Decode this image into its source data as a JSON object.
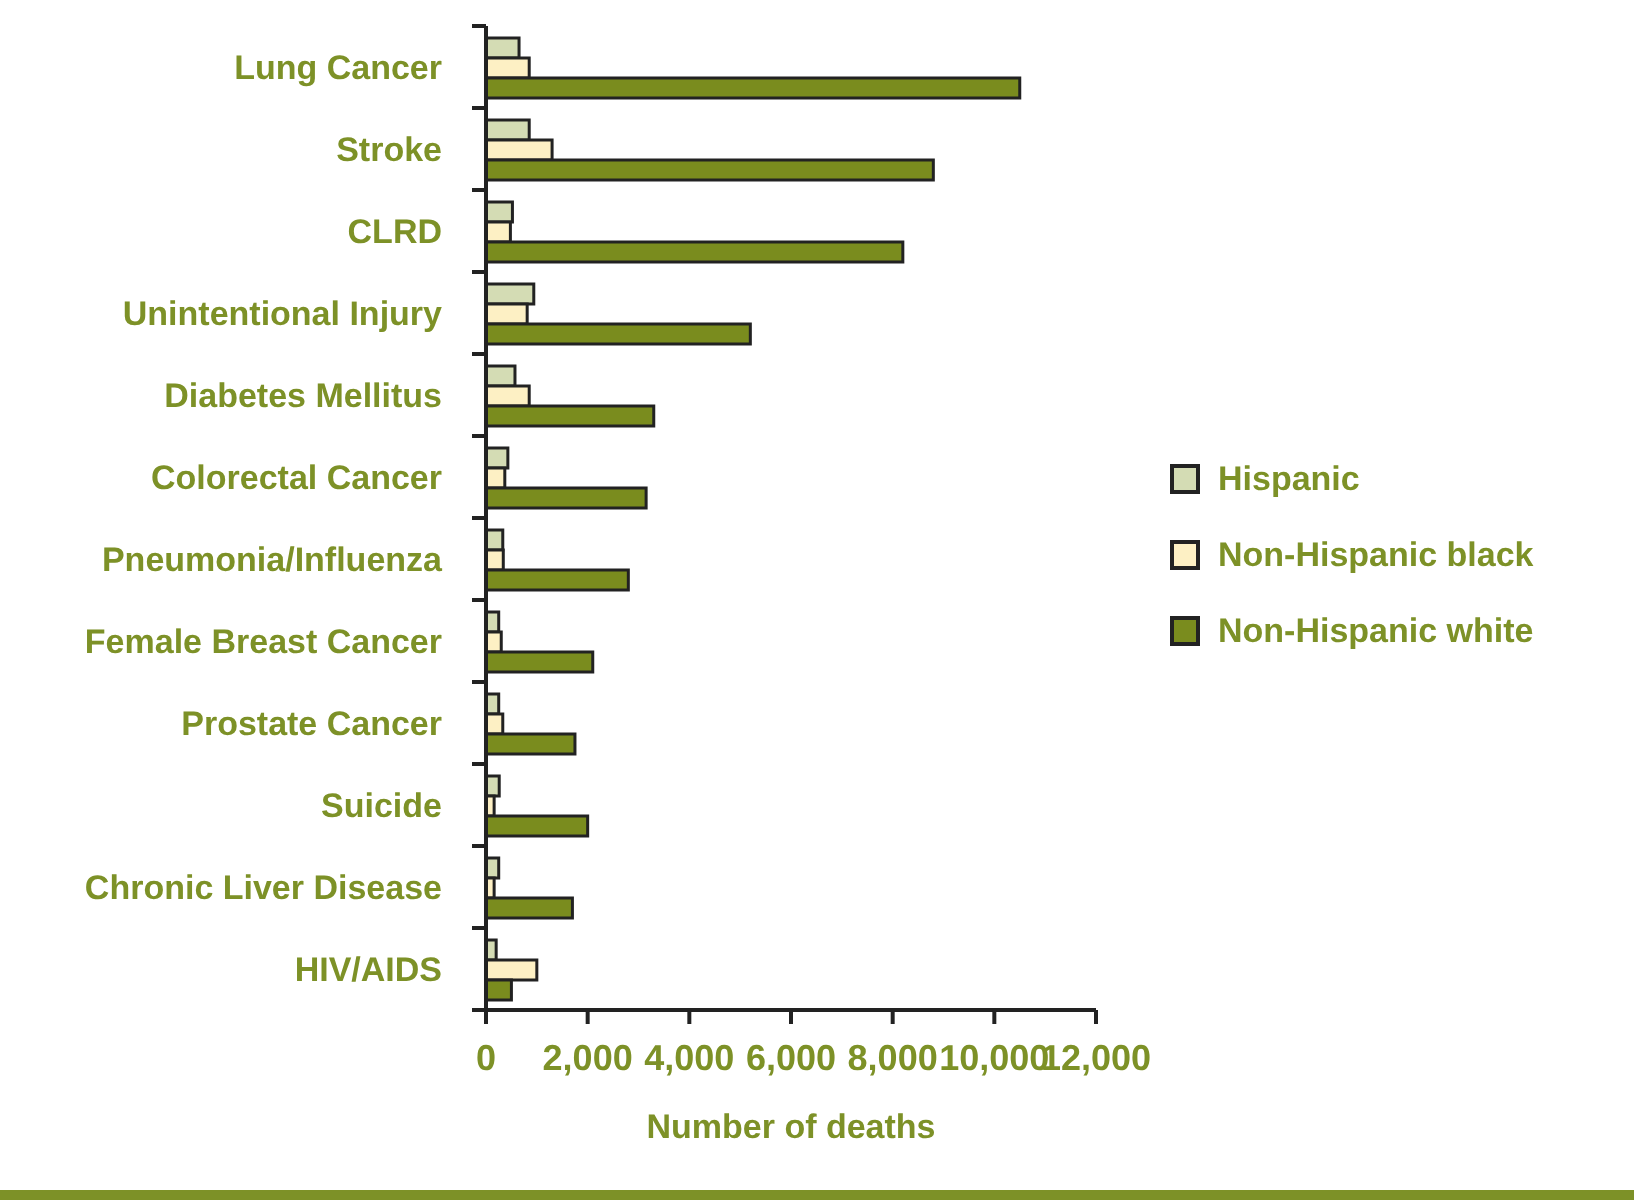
{
  "chart_data": {
    "type": "bar",
    "orientation": "horizontal",
    "xlabel": "Number of deaths",
    "categories": [
      "Lung Cancer",
      "Stroke",
      "CLRD",
      "Unintentional Injury",
      "Diabetes Mellitus",
      "Colorectal Cancer",
      "Pneumonia/Influenza",
      "Female Breast Cancer",
      "Prostate Cancer",
      "Suicide",
      "Chronic Liver Disease",
      "HIV/AIDS"
    ],
    "series": [
      {
        "name": "Hispanic",
        "color": "#d4dcb4",
        "values": [
          650,
          850,
          520,
          940,
          570,
          430,
          330,
          250,
          250,
          260,
          250,
          200
        ]
      },
      {
        "name": "Non-Hispanic black",
        "color": "#fdf0c4",
        "values": [
          850,
          1300,
          480,
          810,
          850,
          370,
          340,
          300,
          330,
          160,
          160,
          1000
        ]
      },
      {
        "name": "Non-Hispanic white",
        "color": "#7a8c1e",
        "values": [
          10500,
          8800,
          8200,
          5200,
          3300,
          3150,
          2800,
          2100,
          1750,
          2000,
          1700,
          500
        ]
      }
    ],
    "xlim": [
      0,
      12000
    ],
    "xticks": [
      0,
      {
        "value": 2000,
        "label": "2,000"
      },
      {
        "value": 4000,
        "label": "4,000"
      },
      {
        "value": 6000,
        "label": "6,000"
      },
      {
        "value": 8000,
        "label": "8,000"
      },
      {
        "value": 10000,
        "label": "10,000"
      },
      {
        "value": 12000,
        "label": "12,000"
      }
    ],
    "grid": false,
    "legend": "right"
  }
}
